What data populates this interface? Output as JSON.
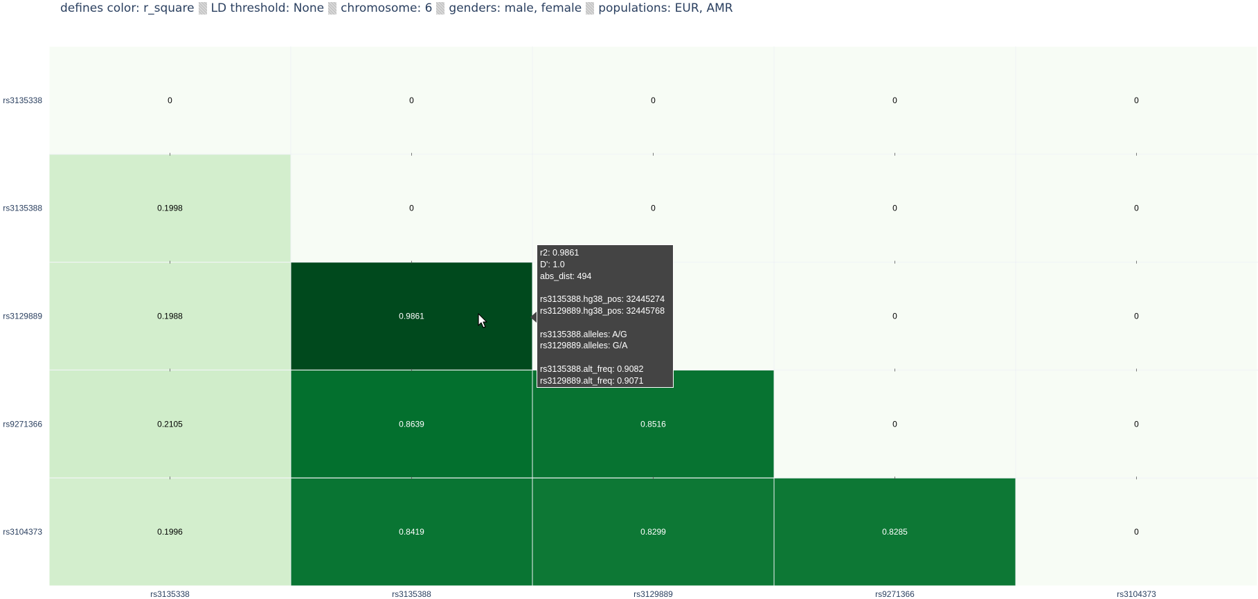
{
  "header": {
    "items": [
      "defines color: r_square",
      "LD threshold: None",
      "chromosome: 6",
      "genders: male, female",
      "populations: EUR, AMR"
    ]
  },
  "chart_data": {
    "type": "heatmap",
    "x": [
      "rs3135338",
      "rs3135388",
      "rs3129889",
      "rs9271366",
      "rs3104373"
    ],
    "y": [
      "rs3135338",
      "rs3135388",
      "rs3129889",
      "rs9271366",
      "rs3104373"
    ],
    "z": [
      [
        0,
        0,
        0,
        0,
        0
      ],
      [
        0.1998,
        0,
        0,
        0,
        0
      ],
      [
        0.1988,
        0.9861,
        0,
        0,
        0
      ],
      [
        0.2105,
        0.8639,
        0.8516,
        0,
        0
      ],
      [
        0.1996,
        0.8419,
        0.8299,
        0.8285,
        0
      ]
    ],
    "colorscale": "Greens",
    "zmin": 0,
    "zmax": 1
  },
  "tooltip": {
    "lines": [
      "r2: 0.9861",
      "D': 1.0",
      "abs_dist: 494",
      "",
      "rs3135388.hg38_pos: 32445274",
      "rs3129889.hg38_pos: 32445768",
      "",
      "rs3135388.alleles: A/G",
      "rs3129889.alleles: G/A",
      "",
      "rs3135388.alt_freq: 0.9082",
      "rs3129889.alt_freq: 0.9071"
    ]
  },
  "cursor_icon": "mouse-pointer-icon"
}
